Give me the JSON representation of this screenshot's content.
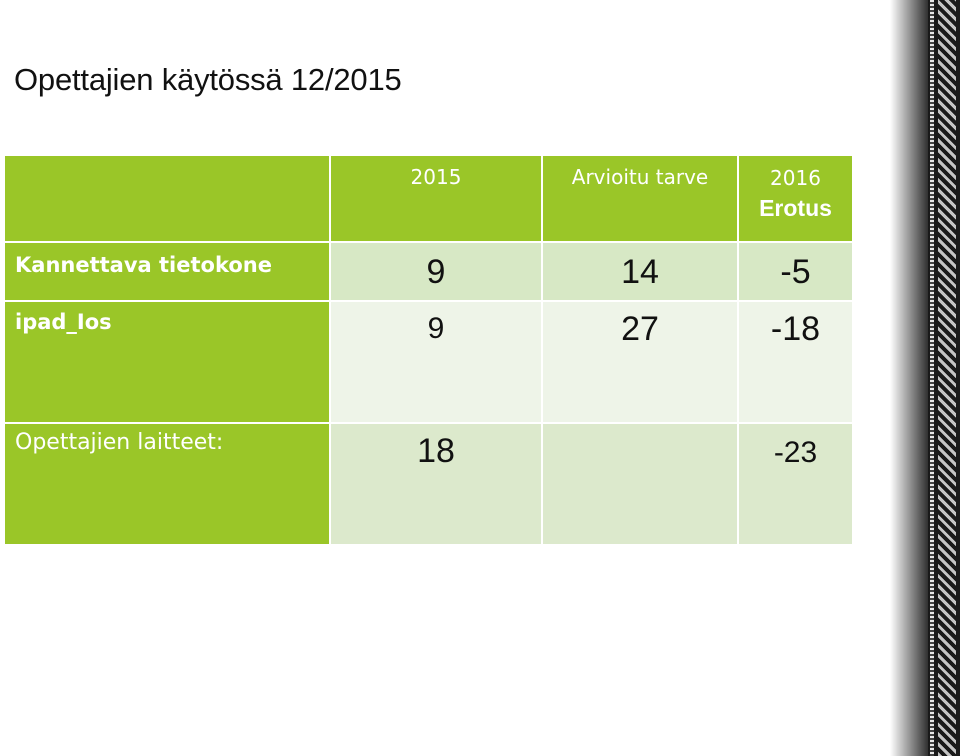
{
  "slide": {
    "title": "Opettajien käytössä 12/2015"
  },
  "table": {
    "header": {
      "col_2015": "2015",
      "col_need": "Arvioitu tarve",
      "col_diff_line1": "2016",
      "col_diff_line2": "Erotus"
    },
    "rows": [
      {
        "label": "Kannettava tietokone",
        "v2015": "9",
        "need": "14",
        "diff": "-5"
      },
      {
        "label": "ipad_Ios",
        "v2015": "9",
        "need": "27",
        "diff": "-18"
      },
      {
        "label": "Opettajien laitteet:",
        "v2015": "18",
        "need": "",
        "diff": "-23"
      }
    ]
  },
  "colors": {
    "header_green": "#9ac628",
    "cell_light": "#d7e8c5",
    "cell_lighter": "#eef4e8"
  }
}
